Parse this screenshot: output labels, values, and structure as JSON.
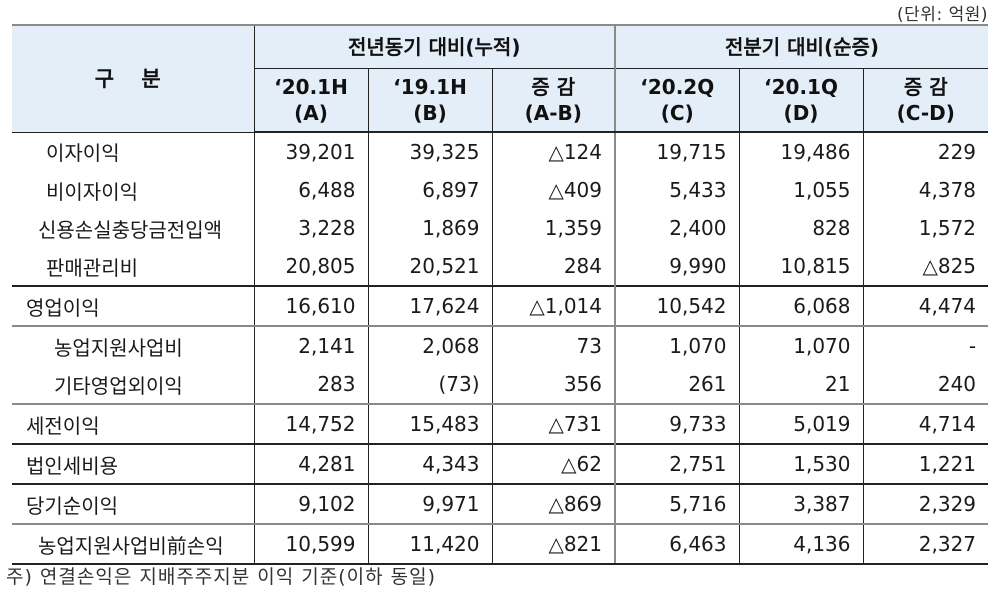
{
  "unit_label": "(단위: 억원)",
  "header": {
    "stub": "구 분",
    "group1": "전년동기 대비(누적)",
    "group2": "전분기 대비(순증)",
    "columns": [
      {
        "line1": "‘20.1H",
        "line2": "(A)"
      },
      {
        "line1": "‘19.1H",
        "line2": "(B)"
      },
      {
        "line1": "증 감",
        "line2": "(A-B)"
      },
      {
        "line1": "‘20.2Q",
        "line2": "(C)"
      },
      {
        "line1": "‘20.1Q",
        "line2": "(D)"
      },
      {
        "line1": "증 감",
        "line2": "(C-D)"
      }
    ]
  },
  "rows": [
    {
      "label": "이자이익",
      "values": [
        "39,201",
        "39,325",
        "△124",
        "19,715",
        "19,486",
        "229"
      ]
    },
    {
      "label": "비이자이익",
      "values": [
        "6,488",
        "6,897",
        "△409",
        "5,433",
        "1,055",
        "4,378"
      ]
    },
    {
      "label": "신용손실충당금전입액",
      "values": [
        "3,228",
        "1,869",
        "1,359",
        "2,400",
        "828",
        "1,572"
      ]
    },
    {
      "label": "판매관리비",
      "values": [
        "20,805",
        "20,521",
        "284",
        "9,990",
        "10,815",
        "△825"
      ]
    },
    {
      "label": "영업이익",
      "values": [
        "16,610",
        "17,624",
        "△1,014",
        "10,542",
        "6,068",
        "4,474"
      ]
    },
    {
      "label": "농업지원사업비",
      "values": [
        "2,141",
        "2,068",
        "73",
        "1,070",
        "1,070",
        "-"
      ]
    },
    {
      "label": "기타영업외이익",
      "values": [
        "283",
        "(73)",
        "356",
        "261",
        "21",
        "240"
      ]
    },
    {
      "label": "세전이익",
      "values": [
        "14,752",
        "15,483",
        "△731",
        "9,733",
        "5,019",
        "4,714"
      ]
    },
    {
      "label": "법인세비용",
      "values": [
        "4,281",
        "4,343",
        "△62",
        "2,751",
        "1,530",
        "1,221"
      ]
    },
    {
      "label": "당기순이익",
      "values": [
        "9,102",
        "9,971",
        "△869",
        "5,716",
        "3,387",
        "2,329"
      ]
    },
    {
      "label": "농업지원사업비前손익",
      "values": [
        "10,599",
        "11,420",
        "△821",
        "6,463",
        "4,136",
        "2,327"
      ]
    }
  ],
  "footnote": "주) 연결손익은 지배주주지분 이익 기준(이하 동일)",
  "colors": {
    "header_bg": "#e4eef8",
    "border_dark": "#222222",
    "border_gray": "#8a8a8a"
  }
}
